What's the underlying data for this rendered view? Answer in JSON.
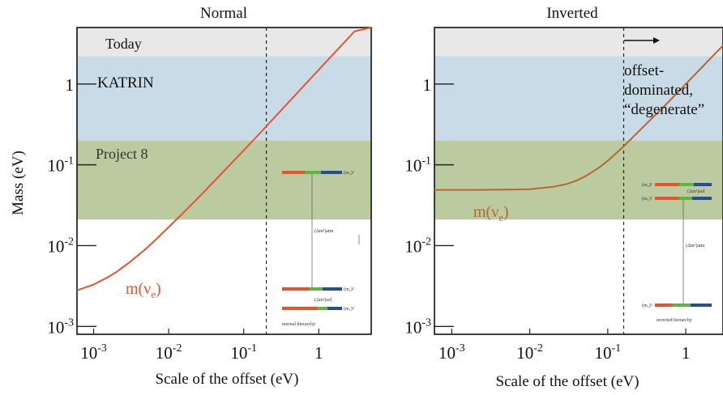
{
  "chart_data": [
    {
      "type": "line",
      "title": "Normal",
      "xlabel": "Scale of the offset (eV)",
      "ylabel": "Mass (eV)",
      "x_scale": "log",
      "y_scale": "log",
      "xlim": [
        0.0006,
        5
      ],
      "ylim": [
        0.0008,
        5
      ],
      "x_ticks": [
        {
          "v": 0.001,
          "b": "10",
          "e": "-3"
        },
        {
          "v": 0.01,
          "b": "10",
          "e": "-2"
        },
        {
          "v": 0.1,
          "b": "10",
          "e": "-1"
        },
        {
          "v": 1,
          "b": "1",
          "e": ""
        }
      ],
      "y_ticks": [
        {
          "v": 0.001,
          "b": "10",
          "e": "-3"
        },
        {
          "v": 0.01,
          "b": "10",
          "e": "-2"
        },
        {
          "v": 0.1,
          "b": "10",
          "e": "-1"
        },
        {
          "v": 1,
          "b": "1",
          "e": ""
        }
      ],
      "bands": [
        {
          "label": "Today",
          "from": 2.2,
          "to": 5,
          "color": "#e8e8e8"
        },
        {
          "label": "KATRIN",
          "from": 0.2,
          "to": 2.2,
          "color": "#c9dbe6"
        },
        {
          "label": "Project 8",
          "from": 0.021,
          "to": 0.2,
          "color": "#bccb9f"
        }
      ],
      "vline_x": 0.2,
      "series": [
        {
          "name_base": "m(ν",
          "name_sub": "e",
          "name_close": ")",
          "color": "#e8532e",
          "x": [
            0.0006,
            0.001,
            0.0015,
            0.002,
            0.003,
            0.005,
            0.007,
            0.01,
            0.015,
            0.02,
            0.03,
            0.05,
            0.07,
            0.1,
            0.15,
            0.2,
            0.3,
            0.5,
            0.7,
            1,
            1.5,
            2,
            3,
            5
          ],
          "y": [
            0.0028,
            0.0033,
            0.004,
            0.0047,
            0.0062,
            0.0092,
            0.0123,
            0.017,
            0.0245,
            0.032,
            0.047,
            0.077,
            0.107,
            0.151,
            0.225,
            0.3,
            0.45,
            0.75,
            1.05,
            1.5,
            2.25,
            3.0,
            4.5,
            5.0
          ]
        }
      ],
      "inset": {
        "caption": "normal hierarchy",
        "labels": {
          "m3": "(m₃)²",
          "m2": "(m₂)²",
          "m1": "(m₁)²",
          "atm": "(Δm²)atm",
          "sol": "(Δm²)sol"
        }
      }
    },
    {
      "type": "line",
      "title": "Inverted",
      "xlabel": "Scale of the offset (eV)",
      "ylabel": "",
      "x_scale": "log",
      "y_scale": "log",
      "xlim": [
        0.0006,
        3
      ],
      "ylim": [
        0.0008,
        5
      ],
      "x_ticks": [
        {
          "v": 0.001,
          "b": "10",
          "e": "-3"
        },
        {
          "v": 0.01,
          "b": "10",
          "e": "-2"
        },
        {
          "v": 0.1,
          "b": "10",
          "e": "-1"
        },
        {
          "v": 1,
          "b": "1",
          "e": ""
        }
      ],
      "y_ticks": [
        {
          "v": 0.001,
          "b": "10",
          "e": "-3"
        },
        {
          "v": 0.01,
          "b": "10",
          "e": "-2"
        },
        {
          "v": 0.1,
          "b": "10",
          "e": "-1"
        },
        {
          "v": 1,
          "b": "1",
          "e": ""
        }
      ],
      "bands": [
        {
          "label": "",
          "from": 2.2,
          "to": 5,
          "color": "#e8e8e8"
        },
        {
          "label": "",
          "from": 0.2,
          "to": 2.2,
          "color": "#c9dbe6"
        },
        {
          "label": "",
          "from": 0.021,
          "to": 0.2,
          "color": "#bccb9f"
        }
      ],
      "vline_x": 0.16,
      "annotation": [
        "offset-",
        "dominated,",
        "“degenerate”"
      ],
      "series": [
        {
          "name_base": "m(ν",
          "name_sub": "e",
          "name_close": ")",
          "color": "#b5672f",
          "x": [
            0.0006,
            0.001,
            0.002,
            0.005,
            0.01,
            0.02,
            0.03,
            0.04,
            0.05,
            0.06,
            0.08,
            0.1,
            0.15,
            0.2,
            0.3,
            0.5,
            1,
            2,
            3
          ],
          "y": [
            0.049,
            0.049,
            0.049,
            0.0493,
            0.05,
            0.0535,
            0.058,
            0.064,
            0.071,
            0.079,
            0.095,
            0.112,
            0.16,
            0.21,
            0.31,
            0.5,
            1.0,
            2.0,
            3.0
          ]
        }
      ],
      "inset": {
        "caption": "inverted hierarchy",
        "labels": {
          "m2": "(m₂)²",
          "m1": "(m₁)²",
          "m3": "(m₃)²",
          "sol": "(Δm²)sol",
          "atm": "(Δm²)atm"
        }
      }
    }
  ]
}
